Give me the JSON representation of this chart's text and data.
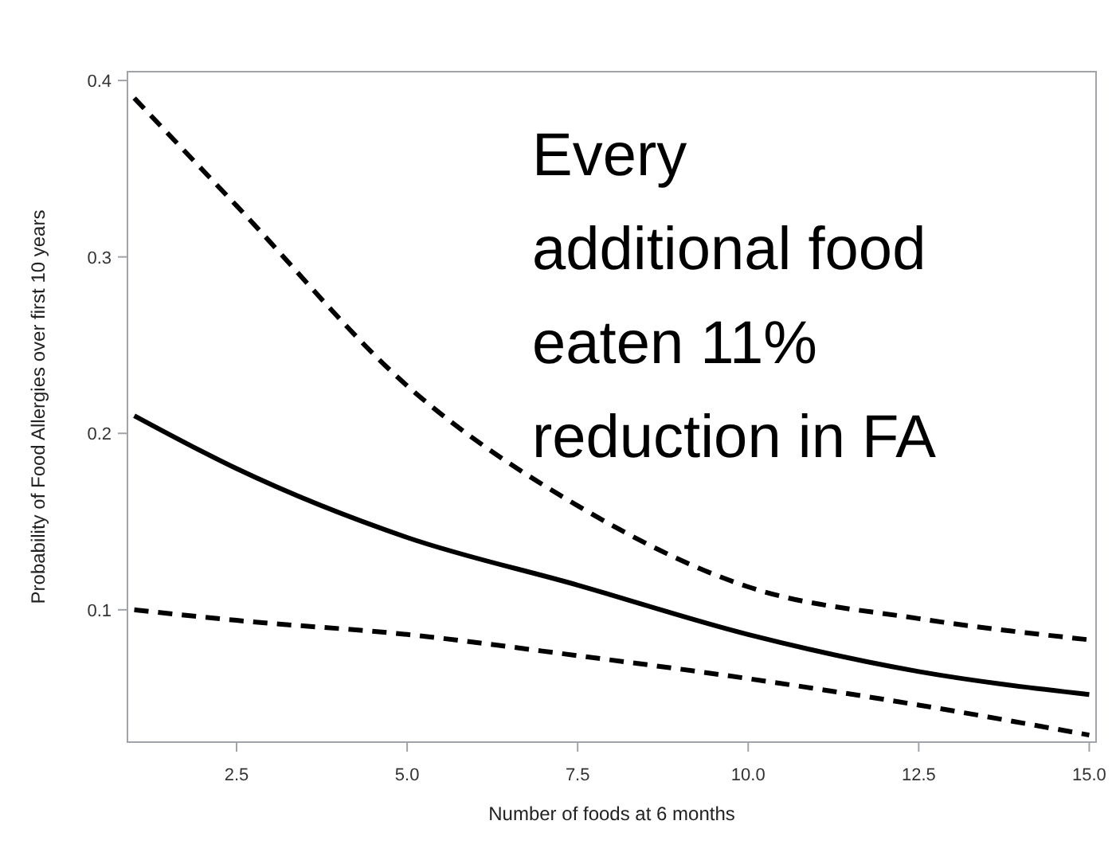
{
  "chart_data": {
    "type": "line",
    "xlabel": "Number of foods at 6 months",
    "ylabel": "Probability of Food Allergies over first 10 years",
    "annotations": [
      "Every additional food eaten 11% reduction in FA"
    ],
    "xlim": [
      0.9,
      15.1
    ],
    "xticks": [
      {
        "value": 2.5,
        "label": "2.5"
      },
      {
        "value": 5,
        "label": "5.0"
      },
      {
        "value": 7.5,
        "label": "7.5"
      },
      {
        "value": 10,
        "label": "10.0"
      },
      {
        "value": 12.5,
        "label": "12.5"
      },
      {
        "value": 15,
        "label": "15.0"
      }
    ],
    "ylim": [
      0.025,
      0.405
    ],
    "yticks": [
      0.1,
      0.2,
      0.3,
      0.4
    ],
    "grid": false,
    "x": [
      1,
      2.5,
      5,
      7.5,
      10,
      12.5,
      15
    ],
    "series": [
      {
        "color": "#000000",
        "line_style": "dashed",
        "values": [
          0.39,
          0.329,
          0.227,
          0.159,
          0.113,
          0.095,
          0.083
        ]
      },
      {
        "color": "#000000",
        "line_style": "solid",
        "values": [
          0.21,
          0.18,
          0.141,
          0.114,
          0.086,
          0.065,
          0.052
        ]
      },
      {
        "color": "#000000",
        "line_style": "dashed",
        "values": [
          0.1,
          0.094,
          0.086,
          0.074,
          0.061,
          0.046,
          0.029
        ]
      }
    ]
  }
}
